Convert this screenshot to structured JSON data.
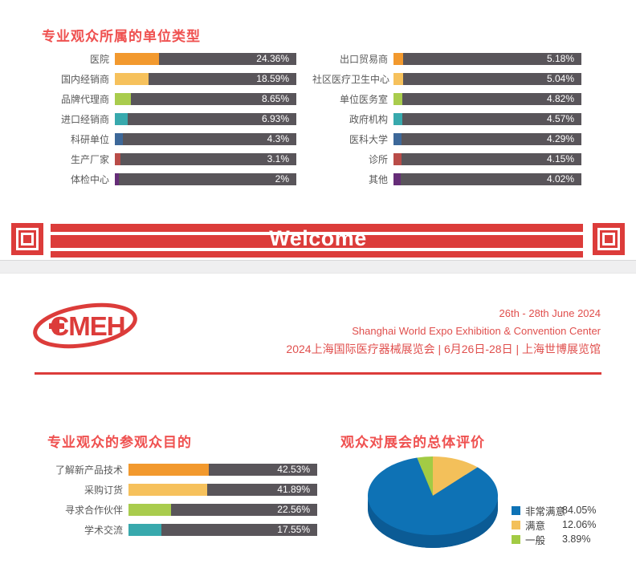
{
  "theme": {
    "accent_red": "#dc3c3a",
    "title_red": "#ef5150",
    "date_red": "#e04f4d",
    "bar_gray": "#59555a",
    "label_gray": "#595959",
    "legend_text": "#3e3e3e",
    "gap_bg": "#efeff0"
  },
  "banner": {
    "text": "Welcome"
  },
  "header": {
    "logo": "CMEH",
    "line1": "26th - 28th June 2024",
    "line2": "Shanghai World Expo Exhibition & Convention Center",
    "line3": "2024上海国际医疗器械展览会 | 6月26日-28日 | 上海世博展览馆"
  },
  "chart_data": [
    {
      "type": "bar",
      "orientation": "horizontal",
      "title": "专业观众所属的单位类型",
      "unit": "percent",
      "columns": [
        {
          "categories": [
            "医院",
            "国内经销商",
            "品牌代理商",
            "进口经销商",
            "科研单位",
            "生产厂家",
            "体检中心"
          ],
          "values": [
            24.36,
            18.59,
            8.65,
            6.93,
            4.3,
            3.1,
            2
          ],
          "labels": [
            "24.36%",
            "18.59%",
            "8.65%",
            "6.93%",
            "4.3%",
            "3.1%",
            "2%"
          ],
          "colors": [
            "#f2992e",
            "#f6c15c",
            "#a9cc4d",
            "#38a9ad",
            "#3d6899",
            "#b94c48",
            "#662d78"
          ]
        },
        {
          "categories": [
            "出口贸易商",
            "社区医疗卫生中心",
            "单位医务室",
            "政府机构",
            "医科大学",
            "诊所",
            "其他"
          ],
          "values": [
            5.18,
            5.04,
            4.82,
            4.57,
            4.29,
            4.15,
            4.02
          ],
          "labels": [
            "5.18%",
            "5.04%",
            "4.82%",
            "4.57%",
            "4.29%",
            "4.15%",
            "4.02%"
          ],
          "colors": [
            "#f2992e",
            "#f6c15c",
            "#a9cc4d",
            "#38a9ad",
            "#3d6899",
            "#b94c48",
            "#662d78"
          ]
        }
      ]
    },
    {
      "type": "bar",
      "orientation": "horizontal",
      "title": "专业观众的参观众目的",
      "unit": "percent",
      "categories": [
        "了解新产品技术",
        "采购订货",
        "寻求合作伙伴",
        "学术交流"
      ],
      "values": [
        42.53,
        41.89,
        22.56,
        17.55
      ],
      "labels": [
        "42.53%",
        "41.89%",
        "22.56%",
        "17.55%"
      ],
      "colors": [
        "#f2992e",
        "#f6c15c",
        "#a9cc4d",
        "#38a9ad"
      ]
    },
    {
      "type": "pie",
      "title": "观众对展会的总体评价",
      "legend_position": "right",
      "categories": [
        "非常满意",
        "满意",
        "一般"
      ],
      "values": [
        84.05,
        12.06,
        3.89
      ],
      "labels": [
        "84.05%",
        "12.06%",
        "3.89%"
      ],
      "colors": [
        "#0e72b5",
        "#f3c05a",
        "#a2cb44"
      ],
      "depth_color": "#0b5b95"
    }
  ]
}
